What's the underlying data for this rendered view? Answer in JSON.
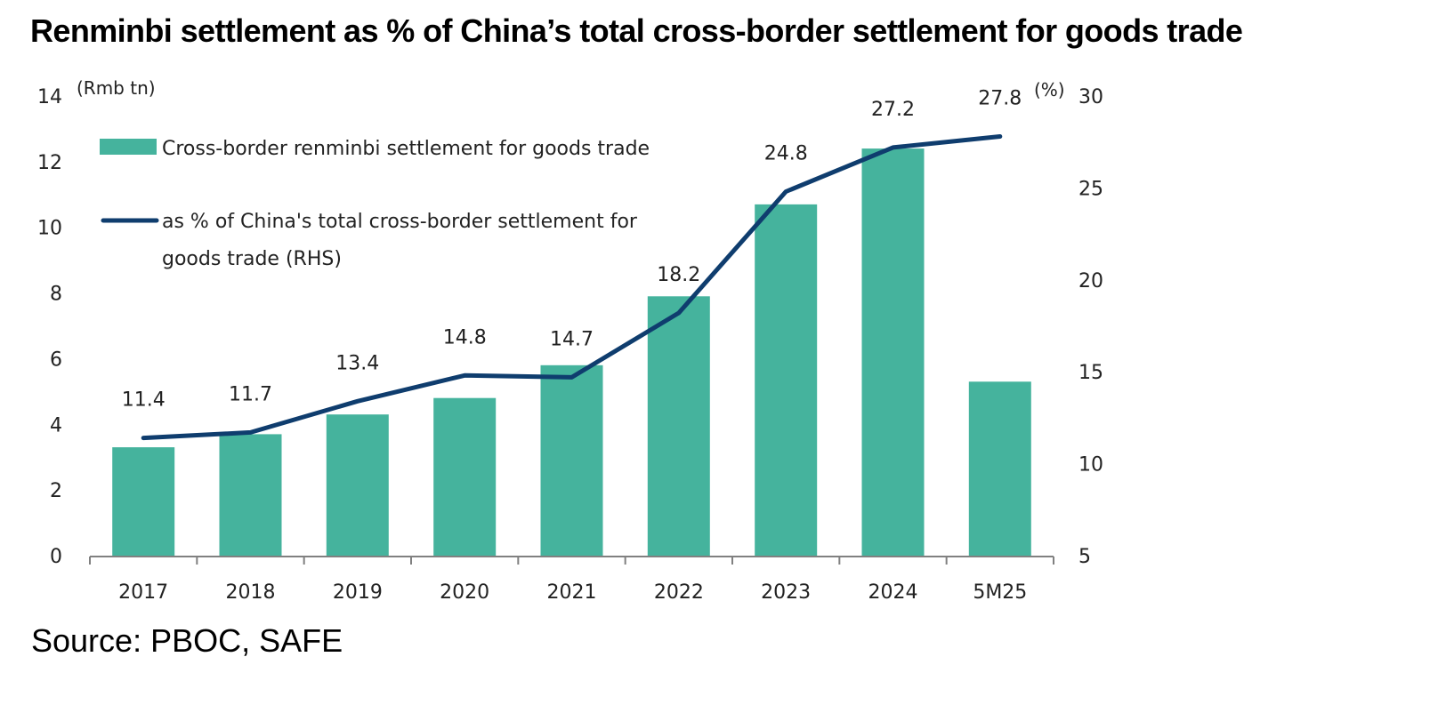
{
  "title": "Renminbi settlement as % of China’s total cross-border settlement for goods trade",
  "source": "Source: PBOC, SAFE",
  "colors": {
    "bar": "#45B39D",
    "line": "#0F3D6E",
    "axis": "#808080",
    "text": "#222222"
  },
  "chart_data": {
    "type": "bar",
    "title": "Renminbi settlement as % of China’s total cross-border settlement for goods trade",
    "categories": [
      "2017",
      "2018",
      "2019",
      "2020",
      "2021",
      "2022",
      "2023",
      "2024",
      "5M25"
    ],
    "series": [
      {
        "name": "Cross-border renminbi settlement for goods trade",
        "type": "bar",
        "axis": "left",
        "values": [
          3.3,
          3.7,
          4.3,
          4.8,
          5.8,
          7.9,
          10.7,
          12.4,
          5.3
        ]
      },
      {
        "name": "as % of China's total cross-border settlement for goods trade (RHS)",
        "type": "line",
        "axis": "right",
        "values": [
          11.4,
          11.7,
          13.4,
          14.8,
          14.7,
          18.2,
          24.8,
          27.2,
          27.8
        ],
        "labels": [
          "11.4",
          "11.7",
          "13.4",
          "14.8",
          "14.7",
          "18.2",
          "24.8",
          "27.2",
          "27.8"
        ]
      }
    ],
    "left_axis": {
      "unit_label": "(Rmb tn)",
      "ylim": [
        0,
        14
      ],
      "ticks": [
        0,
        2,
        4,
        6,
        8,
        10,
        12,
        14
      ],
      "tick_labels": [
        "0",
        "2",
        "4",
        "6",
        "8",
        "10",
        "12",
        "14"
      ]
    },
    "right_axis": {
      "unit_label": "(%)",
      "ylim": [
        5,
        30
      ],
      "ticks": [
        5,
        10,
        15,
        20,
        25,
        30
      ],
      "tick_labels": [
        "5",
        "10",
        "15",
        "20",
        "25",
        "30"
      ]
    },
    "xlabel": "",
    "grid": false,
    "legend": {
      "placement": "top-left",
      "entries": [
        {
          "label": "Cross-border renminbi settlement for goods trade",
          "kind": "bar"
        },
        {
          "label_line1": "as % of China's total cross-border settlement for",
          "label_line2": "goods trade (RHS)",
          "kind": "line"
        }
      ]
    }
  }
}
